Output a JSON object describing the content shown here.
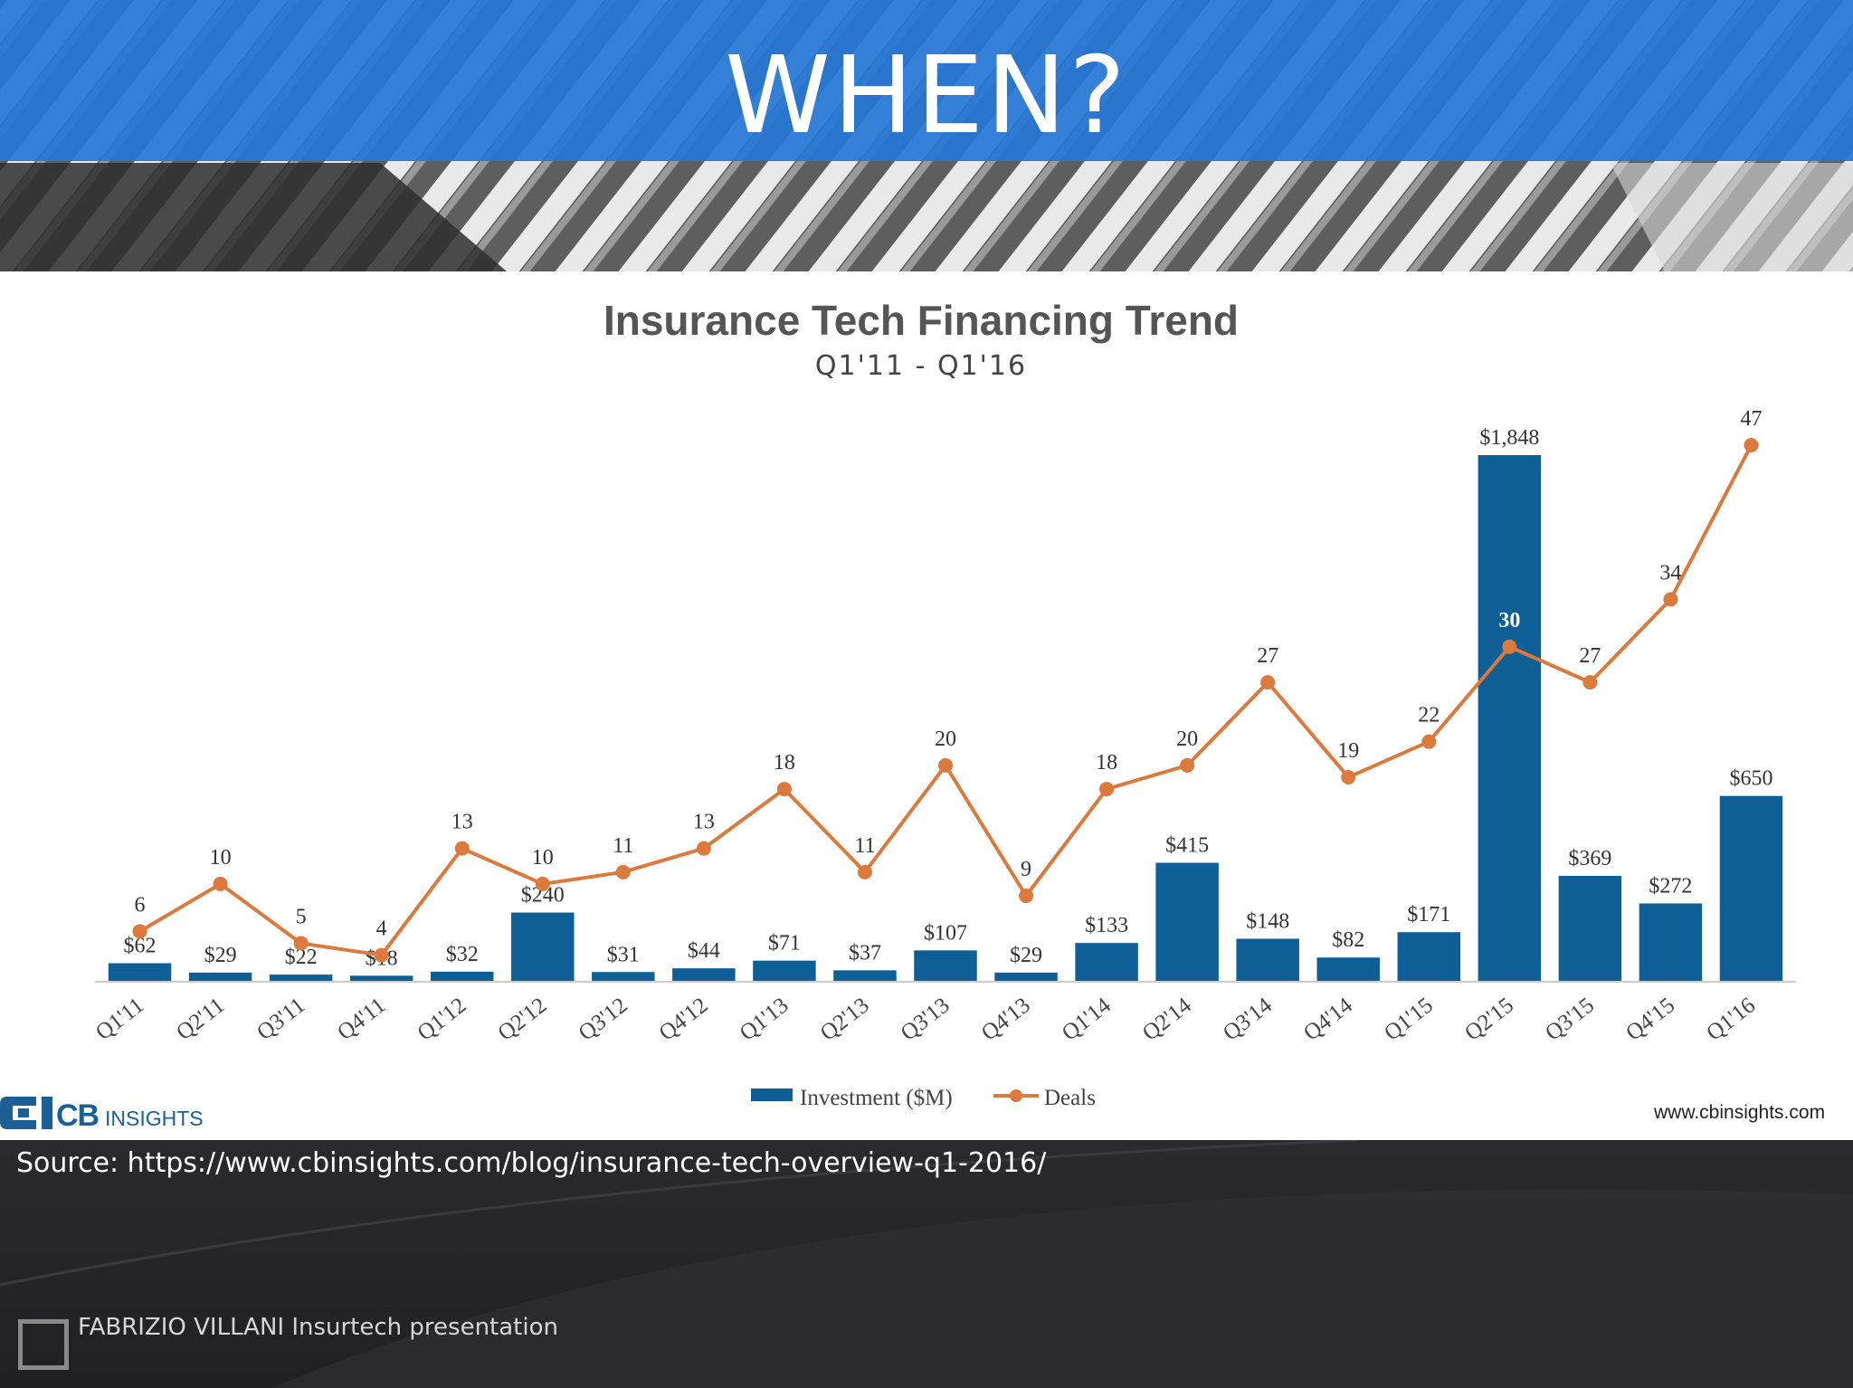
{
  "slide": {
    "title": "WHEN?",
    "source": "Source:  https://www.cbinsights.com/blog/insurance-tech-overview-q1-2016/",
    "credit": "FABRIZIO VILLANI Insurtech presentation"
  },
  "branding": {
    "logo_text_bold": "CB",
    "logo_text_light": "INSIGHTS",
    "url": "www.cbinsights.com"
  },
  "colors": {
    "banner_blue": "#2676d6",
    "bar": "#0d5f95",
    "line": "#dc7a3e",
    "text": "#333333"
  },
  "chart_data": {
    "type": "bar",
    "title": "Insurance Tech Financing Trend",
    "subtitle": "Q1'11 - Q1'16",
    "categories": [
      "Q1'11",
      "Q2'11",
      "Q3'11",
      "Q4'11",
      "Q1'12",
      "Q2'12",
      "Q3'12",
      "Q4'12",
      "Q1'13",
      "Q2'13",
      "Q3'13",
      "Q4'13",
      "Q1'14",
      "Q2'14",
      "Q3'14",
      "Q4'14",
      "Q1'15",
      "Q2'15",
      "Q3'15",
      "Q4'15",
      "Q1'16"
    ],
    "series": [
      {
        "name": "Investment ($M)",
        "type": "bar",
        "values": [
          62,
          29,
          22,
          18,
          32,
          240,
          31,
          44,
          71,
          37,
          107,
          29,
          133,
          415,
          148,
          82,
          171,
          1848,
          369,
          272,
          650
        ],
        "labels": [
          "$62",
          "$29",
          "$22",
          "$18",
          "$32",
          "$240",
          "$31",
          "$44",
          "$71",
          "$37",
          "$107",
          "$29",
          "$133",
          "$415",
          "$148",
          "$82",
          "$171",
          "$1,848",
          "$369",
          "$272",
          "$650"
        ]
      },
      {
        "name": "Deals",
        "type": "line",
        "values": [
          6,
          10,
          5,
          4,
          13,
          10,
          11,
          13,
          18,
          11,
          20,
          9,
          18,
          20,
          27,
          19,
          22,
          30,
          27,
          34,
          47
        ],
        "labels": [
          "6",
          "10",
          "5",
          "4",
          "13",
          "10",
          "11",
          "13",
          "18",
          "11",
          "20",
          "9",
          "18",
          "20",
          "27",
          "19",
          "22",
          "30",
          "27",
          "34",
          "47"
        ]
      }
    ],
    "y_left_range": [
      0,
      1848
    ],
    "y_right_range": [
      0,
      47
    ],
    "legend": "bottom-center",
    "grid": false
  }
}
